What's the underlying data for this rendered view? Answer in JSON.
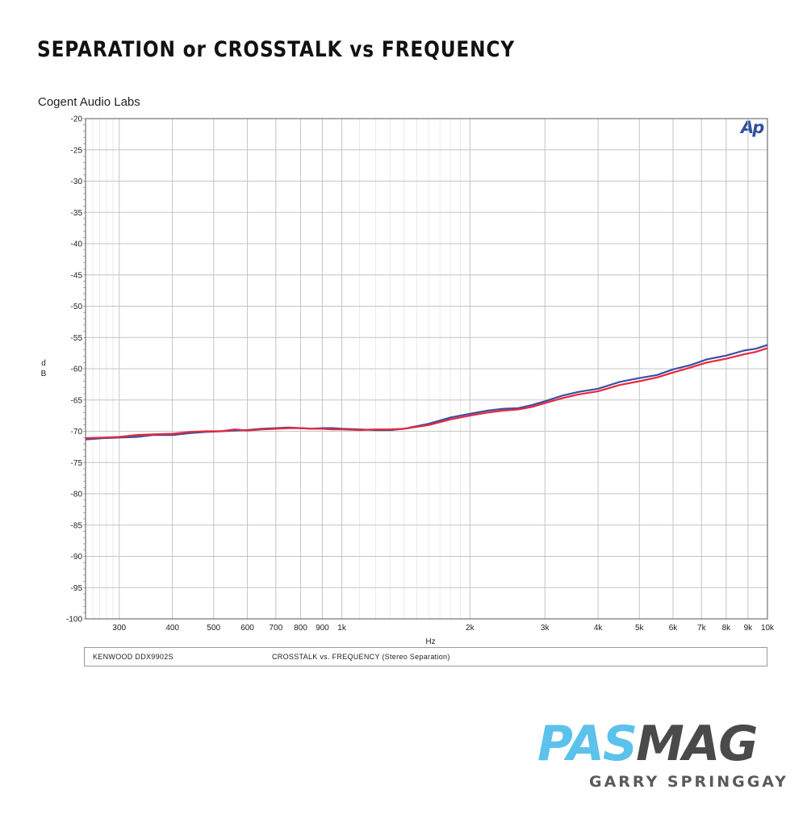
{
  "title": "SEPARATION or CROSSTALK vs FREQUENCY",
  "subtitle": "Cogent Audio Labs",
  "info_left": "KENWOOD  DDX9902S",
  "info_right": "CROSSTALK vs. FREQUENCY  (Stereo Separation)",
  "brand_part1": "PAS",
  "brand_part2": "MAG",
  "author": "GARRY SPRINGGAY",
  "ap_logo": "Ap",
  "colors": {
    "series1": "#3a4fa0",
    "series2": "#e8283c",
    "brand_blue": "#5bc2ec",
    "brand_gray": "#4a4a4a"
  },
  "chart_data": {
    "type": "line",
    "xlabel": "Hz",
    "ylabel": "dB",
    "xscale": "log",
    "xlim": [
      250,
      10000
    ],
    "ylim": [
      -100,
      -20
    ],
    "grid": true,
    "x_ticks": [
      {
        "value": 300,
        "label": "300"
      },
      {
        "value": 400,
        "label": "400"
      },
      {
        "value": 500,
        "label": "500"
      },
      {
        "value": 600,
        "label": "600"
      },
      {
        "value": 700,
        "label": "700"
      },
      {
        "value": 800,
        "label": "800"
      },
      {
        "value": 900,
        "label": "900"
      },
      {
        "value": 1000,
        "label": "1k"
      },
      {
        "value": 2000,
        "label": "2k"
      },
      {
        "value": 3000,
        "label": "3k"
      },
      {
        "value": 4000,
        "label": "4k"
      },
      {
        "value": 5000,
        "label": "5k"
      },
      {
        "value": 6000,
        "label": "6k"
      },
      {
        "value": 7000,
        "label": "7k"
      },
      {
        "value": 8000,
        "label": "8k"
      },
      {
        "value": 9000,
        "label": "9k"
      },
      {
        "value": 10000,
        "label": "10k"
      }
    ],
    "y_ticks": [
      -20,
      -25,
      -30,
      -35,
      -40,
      -45,
      -50,
      -55,
      -60,
      -65,
      -70,
      -75,
      -80,
      -85,
      -90,
      -95,
      -100
    ],
    "y_tick_labels": [
      "-20",
      "-25",
      "-30",
      "-35",
      "-40",
      "-45",
      "-50",
      "-55",
      "-60",
      "-65",
      "-70",
      "-75",
      "-80",
      "-85",
      "-90",
      "-95",
      "-100"
    ],
    "series": [
      {
        "x": [
          250,
          275,
          300,
          330,
          360,
          400,
          440,
          480,
          520,
          560,
          600,
          650,
          700,
          750,
          800,
          850,
          900,
          950,
          1000,
          1100,
          1200,
          1300,
          1400,
          1600,
          1800,
          2000,
          2200,
          2400,
          2600,
          2800,
          3000,
          3300,
          3600,
          4000,
          4500,
          5000,
          5500,
          6000,
          6600,
          7200,
          8000,
          8800,
          9400,
          10000
        ],
        "y": [
          -71.3,
          -71.1,
          -71.0,
          -70.9,
          -70.6,
          -70.6,
          -70.3,
          -70.1,
          -70.0,
          -69.9,
          -69.8,
          -69.6,
          -69.5,
          -69.4,
          -69.5,
          -69.6,
          -69.5,
          -69.5,
          -69.6,
          -69.7,
          -69.8,
          -69.8,
          -69.6,
          -68.8,
          -67.8,
          -67.2,
          -66.7,
          -66.4,
          -66.3,
          -65.8,
          -65.2,
          -64.3,
          -63.7,
          -63.2,
          -62.1,
          -61.5,
          -61.0,
          -60.1,
          -59.4,
          -58.5,
          -57.9,
          -57.1,
          -56.8,
          -56.2
        ]
      },
      {
        "x": [
          250,
          275,
          300,
          330,
          360,
          400,
          440,
          480,
          520,
          560,
          600,
          650,
          700,
          750,
          800,
          850,
          900,
          950,
          1000,
          1100,
          1200,
          1300,
          1400,
          1600,
          1800,
          2000,
          2200,
          2400,
          2600,
          2800,
          3000,
          3300,
          3600,
          4000,
          4500,
          5000,
          5500,
          6000,
          6600,
          7200,
          8000,
          8800,
          9400,
          10000
        ],
        "y": [
          -71.1,
          -71.0,
          -70.9,
          -70.6,
          -70.5,
          -70.4,
          -70.1,
          -70.0,
          -70.0,
          -69.7,
          -69.9,
          -69.7,
          -69.6,
          -69.5,
          -69.5,
          -69.6,
          -69.6,
          -69.7,
          -69.7,
          -69.8,
          -69.7,
          -69.7,
          -69.6,
          -69.0,
          -68.1,
          -67.5,
          -67.0,
          -66.7,
          -66.5,
          -66.1,
          -65.5,
          -64.7,
          -64.1,
          -63.6,
          -62.6,
          -62.0,
          -61.4,
          -60.6,
          -59.8,
          -59.0,
          -58.4,
          -57.7,
          -57.3,
          -56.7
        ]
      }
    ]
  }
}
